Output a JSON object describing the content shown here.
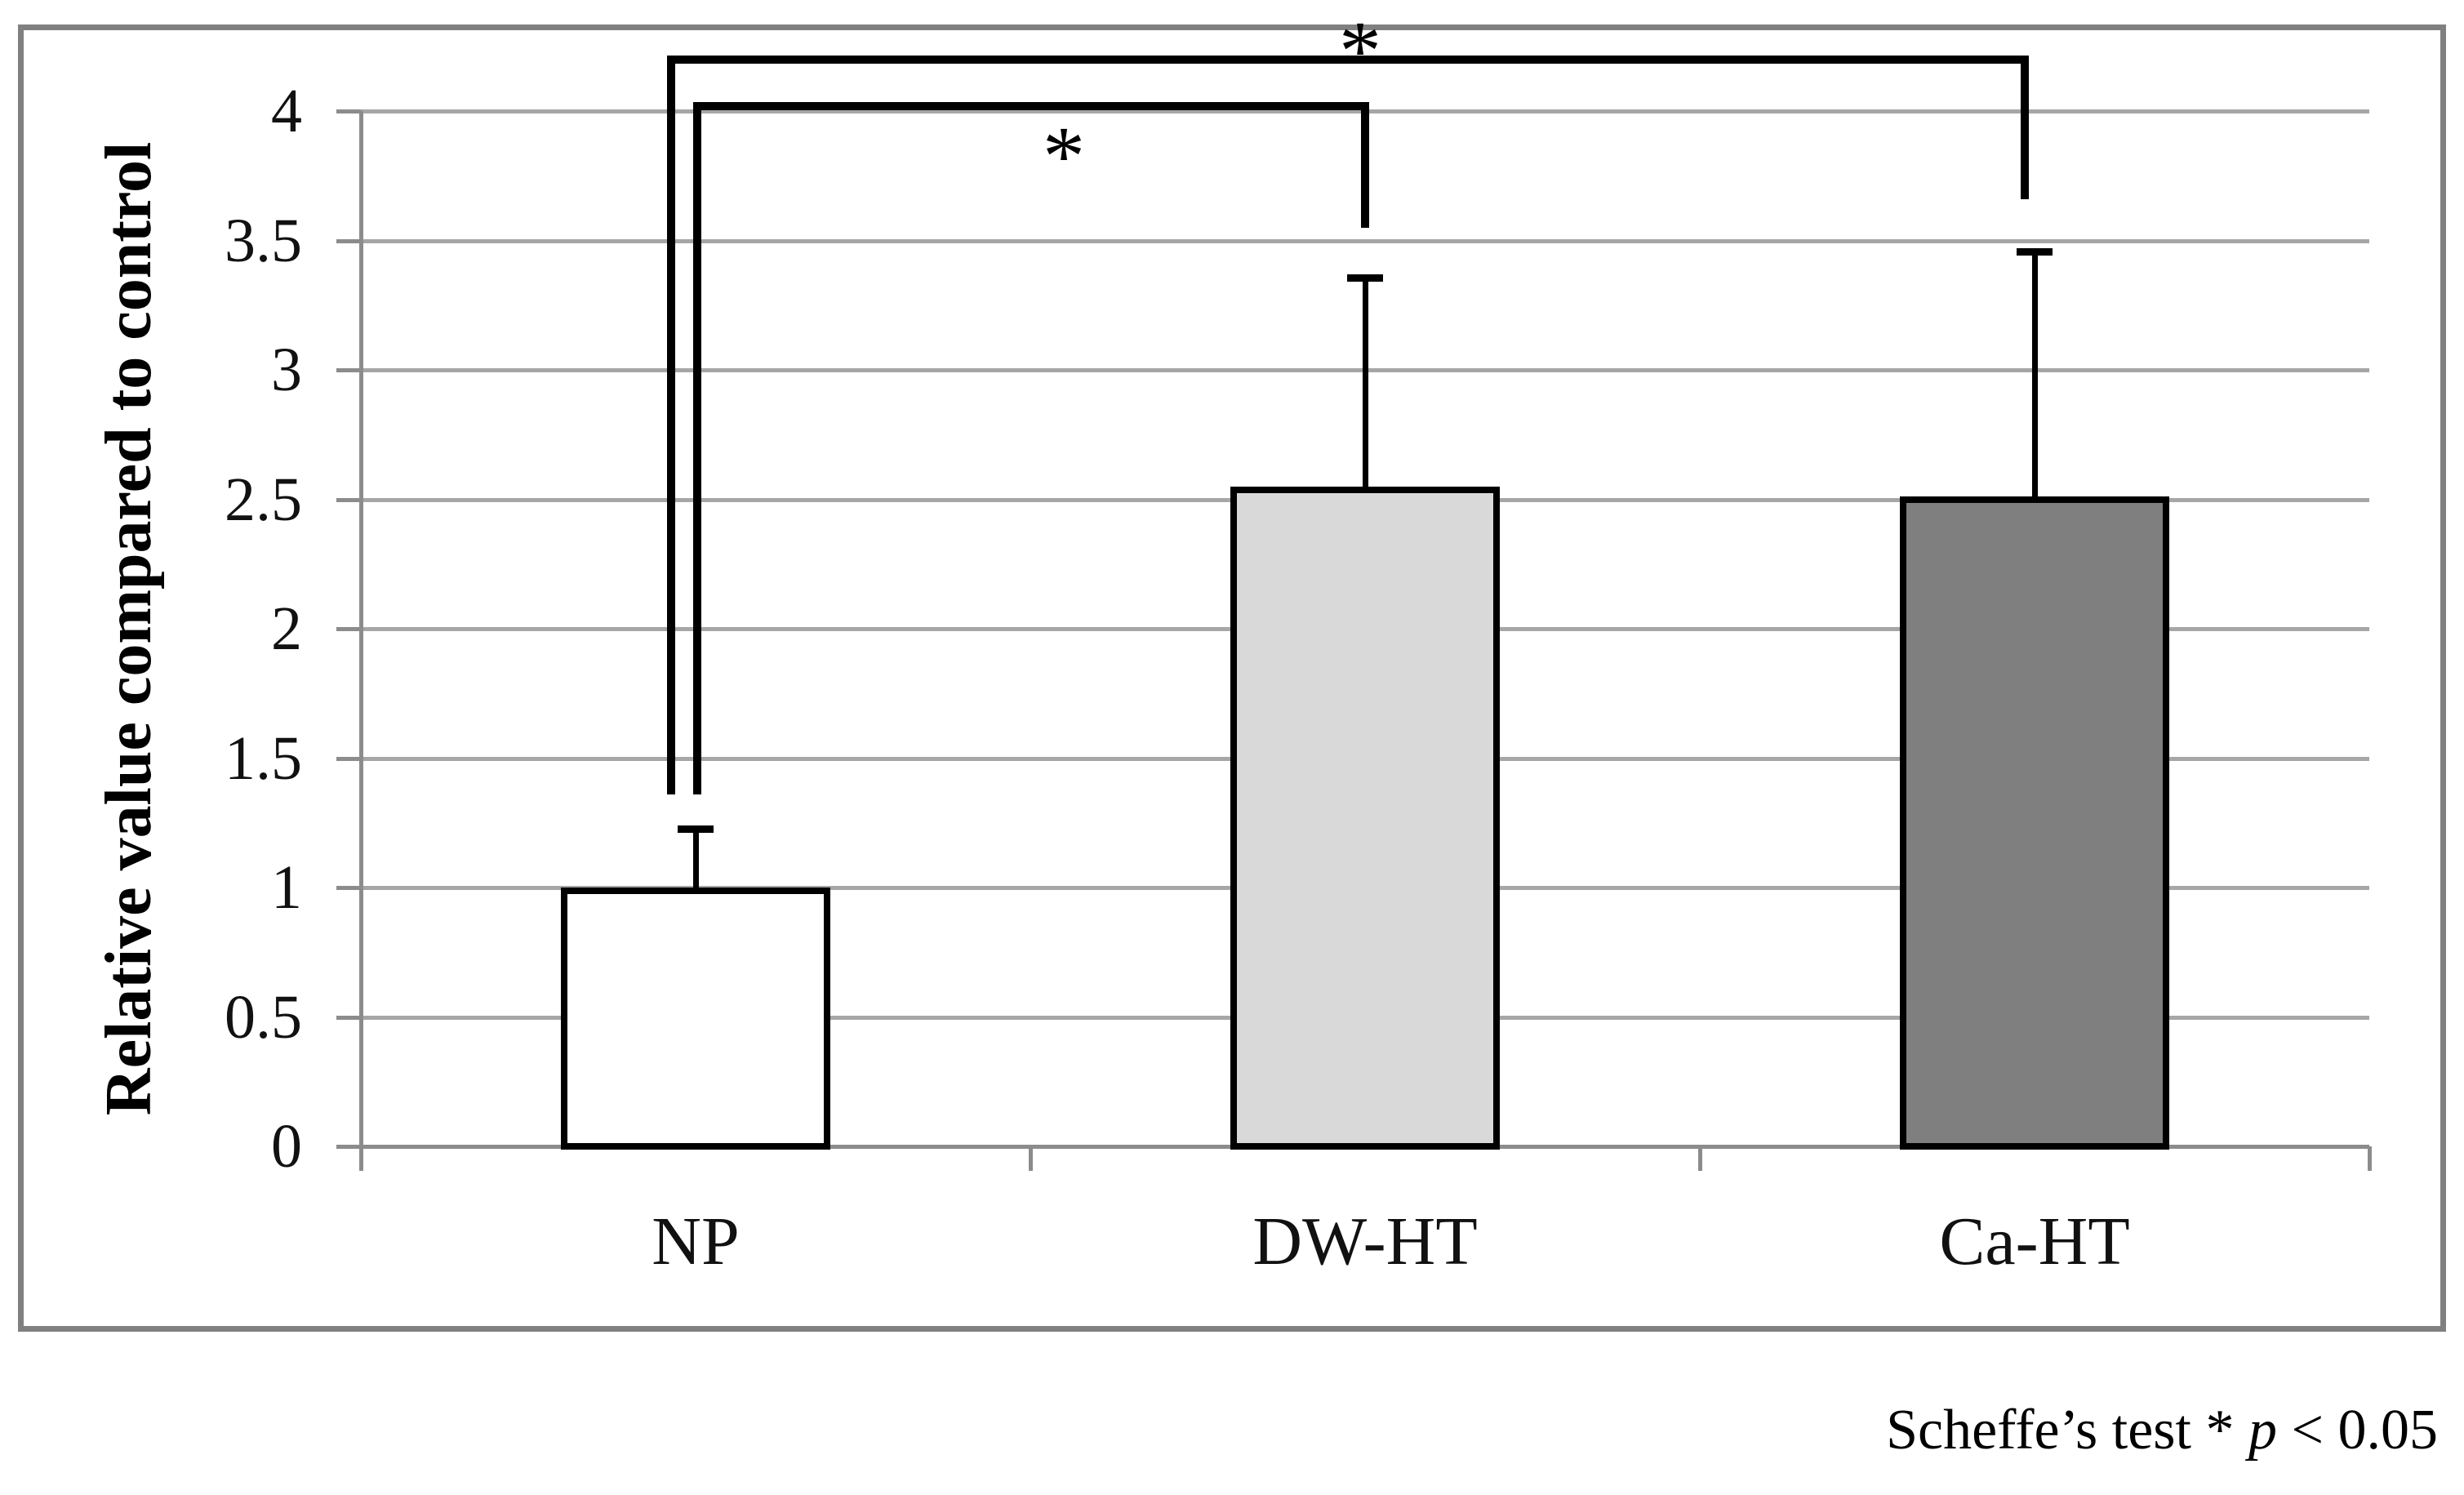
{
  "figure": {
    "footer": {
      "prefix": "Scheffe’s test * ",
      "italic_term": "p",
      "suffix": " < 0.05"
    }
  },
  "chart_data": {
    "type": "bar",
    "title": "",
    "xlabel": "",
    "ylabel": "Relative value compared to control",
    "categories": [
      "NP",
      "DW-HT",
      "Ca-HT"
    ],
    "values": [
      1.0,
      2.55,
      2.51
    ],
    "error_upper": [
      0.24,
      0.82,
      0.96
    ],
    "bar_colors": [
      "#ffffff",
      "#d9d9d9",
      "#7f7f7f"
    ],
    "bar_border_color": "#000000",
    "ylim": [
      0,
      4.2
    ],
    "yticks": [
      0,
      0.5,
      1,
      1.5,
      2,
      2.5,
      3,
      3.5,
      4
    ],
    "ytick_labels": [
      "0",
      "0.5",
      "1",
      "1.5",
      "2",
      "2.5",
      "3",
      "3.5",
      "4"
    ],
    "grid": true,
    "legend": "none",
    "gridline_color": "#a6a6a6",
    "axis_color": "#8c8c8c",
    "frame_color": "#808080",
    "significance_brackets": [
      {
        "from": "NP",
        "to": "DW-HT",
        "label": "*",
        "level_y": 4.02,
        "left_drop_to": 1.36,
        "right_drop_to": 3.55,
        "label_side": "below"
      },
      {
        "from": "NP",
        "to": "Ca-HT",
        "label": "*",
        "level_y": 4.2,
        "left_drop_to": 1.36,
        "right_drop_to": 3.66,
        "label_side": "above"
      }
    ],
    "note": "Scheffe’s test * p < 0.05"
  }
}
